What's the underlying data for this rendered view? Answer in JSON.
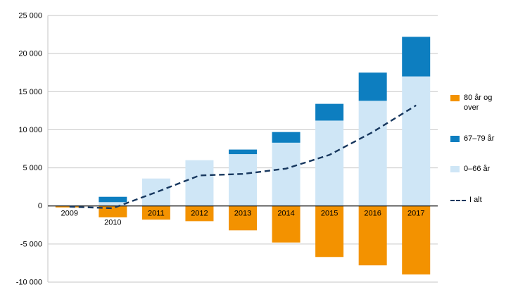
{
  "chart_data": {
    "type": "bar",
    "stacked": true,
    "title": "",
    "xlabel": "",
    "ylabel": "",
    "categories": [
      "2009",
      "2010",
      "2011",
      "2012",
      "2013",
      "2014",
      "2015",
      "2016",
      "2017"
    ],
    "series": [
      {
        "name": "80 år og over",
        "color": "#F39200",
        "values": [
          -200,
          -1500,
          -1800,
          -2000,
          -3200,
          -4800,
          -6700,
          -7800,
          -9000
        ]
      },
      {
        "name": "0–66 år",
        "color": "#CFE6F6",
        "values": [
          100,
          500,
          3600,
          6000,
          6800,
          8300,
          11200,
          13800,
          17000
        ]
      },
      {
        "name": "67–79 år",
        "color": "#0D7EC0",
        "values": [
          0,
          700,
          0,
          0,
          600,
          1400,
          2200,
          3700,
          5200
        ]
      }
    ],
    "line": {
      "name": "I alt",
      "color": "#17375E",
      "dashed": true,
      "values": [
        -100,
        -300,
        1800,
        4000,
        4200,
        4900,
        6700,
        9700,
        13200
      ]
    },
    "ylim": [
      -10000,
      25000
    ],
    "ytick_step": 5000,
    "yticks": [
      "25 000",
      "20 000",
      "15 000",
      "10 000",
      "5 000",
      "0",
      "-5 000",
      "-10 000"
    ],
    "grid": true,
    "legend_position": "right",
    "xlabel_dy": [
      14,
      27,
      14,
      14,
      14,
      14,
      14,
      14,
      14
    ],
    "grid_color": "#C6C6C6",
    "zero_line_color": "#1A1A1A"
  }
}
